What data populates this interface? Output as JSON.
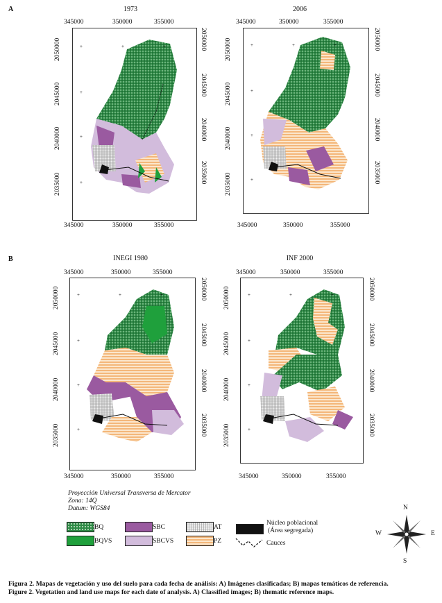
{
  "panels": [
    {
      "letter": "A",
      "maps": [
        {
          "title": "1973"
        },
        {
          "title": "2006"
        }
      ]
    },
    {
      "letter": "B",
      "maps": [
        {
          "title": "INEGI 1980"
        },
        {
          "title": "INF 2000"
        }
      ]
    }
  ],
  "axes": {
    "x_ticks": [
      "345000",
      "350000",
      "355000"
    ],
    "y_ticks": [
      "2050000",
      "2045000",
      "2040000",
      "2035000"
    ]
  },
  "projection": {
    "line1": "Proyección Universal Transversa de Mercator",
    "line2": "Zona: 14Q",
    "line3": "Datum:  WGS84"
  },
  "legend": {
    "BQ": "BQ",
    "BQVS": "BQVS",
    "SBC": "SBC",
    "SBCVS": "SBCVS",
    "AT": "AT",
    "PZ": "PZ",
    "nucleo_line1": "Núcleo poblacional",
    "nucleo_line2": "(Área segregada)",
    "cauces": "Cauces",
    "colors": {
      "BQ": "#2e8b46",
      "BQVS": "#1fa03c",
      "SBC": "#9a5aa0",
      "SBCVS": "#d2bcdc",
      "AT": "#e6e6e6",
      "PZ": "#f4b77a"
    }
  },
  "compass": {
    "N": "N",
    "S": "S",
    "E": "E",
    "W": "W"
  },
  "caption": {
    "es": "Figura 2. Mapas de vegetación y uso del suelo para cada fecha de análisis: A) Imágenes clasificadas; B) mapas temáticos de referencia.",
    "en": "Figure 2. Vegetation and land use maps for each date of analysis. A) Classified images; B) thematic reference maps."
  }
}
